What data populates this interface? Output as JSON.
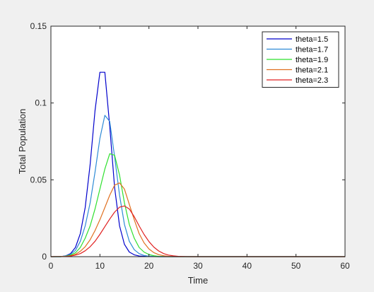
{
  "chart_data": {
    "type": "line",
    "title": "",
    "xlabel": "Time",
    "ylabel": "Total Population",
    "xlim": [
      0,
      60
    ],
    "ylim": [
      0,
      0.15
    ],
    "xticks": [
      0,
      10,
      20,
      30,
      40,
      50,
      60
    ],
    "yticks": [
      0,
      0.05,
      0.1,
      0.15
    ],
    "xtick_labels": [
      "0",
      "10",
      "20",
      "30",
      "40",
      "50",
      "60"
    ],
    "ytick_labels": [
      "0",
      "0.05",
      "0.1",
      "0.15"
    ],
    "grid": false,
    "legend_position": "top-right",
    "series": [
      {
        "name": "theta=1.5",
        "color": "#0000cc",
        "x": [
          0,
          2,
          3,
          4,
          5,
          6,
          7,
          8,
          9,
          10,
          11,
          12,
          13,
          14,
          15,
          16,
          17,
          18,
          20,
          22,
          60
        ],
        "y": [
          0,
          0,
          0.0005,
          0.002,
          0.006,
          0.015,
          0.032,
          0.06,
          0.095,
          0.12,
          0.12,
          0.085,
          0.045,
          0.02,
          0.008,
          0.003,
          0.0012,
          0.0004,
          0.0001,
          0,
          0
        ]
      },
      {
        "name": "theta=1.7",
        "color": "#2e8bd6",
        "x": [
          0,
          2,
          3,
          4,
          5,
          6,
          7,
          8,
          9,
          10,
          11,
          12,
          13,
          14,
          15,
          16,
          17,
          18,
          19,
          20,
          22,
          60
        ],
        "y": [
          0,
          0,
          0.0004,
          0.0015,
          0.004,
          0.01,
          0.02,
          0.035,
          0.055,
          0.077,
          0.092,
          0.088,
          0.065,
          0.04,
          0.021,
          0.01,
          0.0045,
          0.002,
          0.0008,
          0.0003,
          0,
          0
        ]
      },
      {
        "name": "theta=1.9",
        "color": "#2ee02e",
        "x": [
          0,
          2,
          3,
          4,
          5,
          6,
          7,
          8,
          9,
          10,
          11,
          12,
          13,
          14,
          15,
          16,
          17,
          18,
          19,
          20,
          21,
          22,
          24,
          60
        ],
        "y": [
          0,
          0,
          0.0003,
          0.001,
          0.0025,
          0.006,
          0.012,
          0.02,
          0.031,
          0.044,
          0.057,
          0.067,
          0.066,
          0.053,
          0.035,
          0.021,
          0.012,
          0.006,
          0.003,
          0.0014,
          0.0006,
          0.0002,
          0,
          0
        ]
      },
      {
        "name": "theta=2.1",
        "color": "#e07020",
        "x": [
          0,
          3,
          4,
          5,
          6,
          7,
          8,
          9,
          10,
          11,
          12,
          13,
          14,
          15,
          16,
          17,
          18,
          19,
          20,
          21,
          22,
          23,
          24,
          26,
          60
        ],
        "y": [
          0,
          0.0002,
          0.0006,
          0.0015,
          0.0035,
          0.0065,
          0.011,
          0.017,
          0.024,
          0.032,
          0.04,
          0.0465,
          0.048,
          0.044,
          0.034,
          0.024,
          0.015,
          0.009,
          0.005,
          0.0026,
          0.0013,
          0.0006,
          0.0002,
          0,
          0
        ]
      },
      {
        "name": "theta=2.3",
        "color": "#e02020",
        "x": [
          0,
          3,
          4,
          5,
          6,
          7,
          8,
          9,
          10,
          11,
          12,
          13,
          14,
          15,
          16,
          17,
          18,
          19,
          20,
          21,
          22,
          23,
          24,
          25,
          26,
          28,
          60
        ],
        "y": [
          0,
          0.0001,
          0.0004,
          0.001,
          0.002,
          0.0038,
          0.0065,
          0.01,
          0.0145,
          0.0195,
          0.0245,
          0.029,
          0.0322,
          0.033,
          0.031,
          0.026,
          0.02,
          0.0145,
          0.0098,
          0.0062,
          0.0037,
          0.002,
          0.001,
          0.0005,
          0.0002,
          0,
          0
        ]
      }
    ]
  }
}
